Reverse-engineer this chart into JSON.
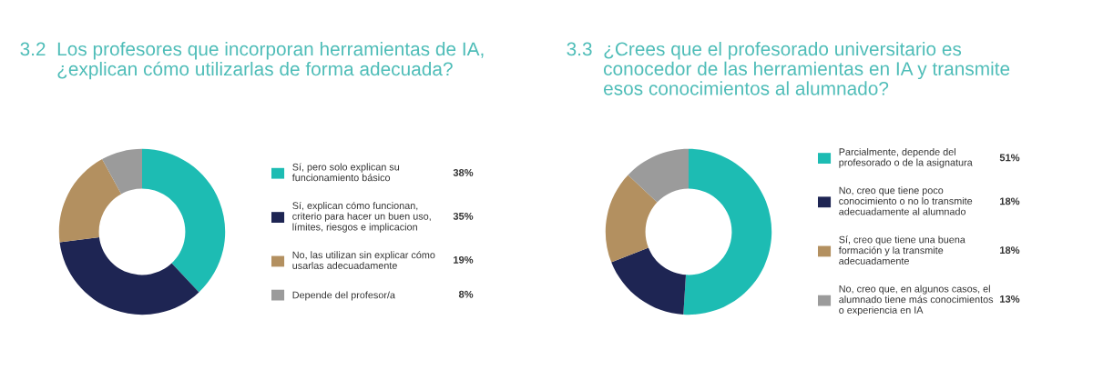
{
  "chart_data": [
    {
      "type": "donut",
      "title": "3.2  Los profesores que incorporan herramientas de IA,\n       ¿explican cómo utilizarlas de forma adecuada?",
      "categories": [
        "Sí, pero solo explican su\nfuncionamiento básico",
        "Sí, explican cómo funcionan,\ncriterio para hacer un buen uso,\nlímites, riesgos e implicacion",
        "No, las utilizan sin explicar cómo\nusarlas adecuadamente",
        "Depende del profesor/a"
      ],
      "values": [
        38,
        35,
        19,
        8
      ],
      "value_labels": [
        "38%",
        "35%",
        "19%",
        "8%"
      ],
      "colors": [
        "#1dbcb3",
        "#1e2553",
        "#b39060",
        "#9b9b9b"
      ],
      "legend": "right"
    },
    {
      "type": "donut",
      "title": "3.3  ¿Crees que el profesorado universitario es\n       conocedor de las herramientas en IA y transmite\n       esos conocimientos al alumnado?",
      "categories": [
        "Parcialmente, depende del\nprofesorado o de la asignatura",
        "No, creo que tiene poco\nconocimiento o no lo transmite\nadecuadamente al alumnado",
        "Sí, creo que tiene una buena\nformación y la transmite\nadecuadamente",
        "No, creo que, en algunos casos, el\nalumnado tiene más conocimientos\no experiencia en IA"
      ],
      "values": [
        51,
        18,
        18,
        13
      ],
      "value_labels": [
        "51%",
        "18%",
        "18%",
        "13%"
      ],
      "colors": [
        "#1dbcb3",
        "#1e2553",
        "#b39060",
        "#9b9b9b"
      ],
      "legend": "right"
    }
  ]
}
